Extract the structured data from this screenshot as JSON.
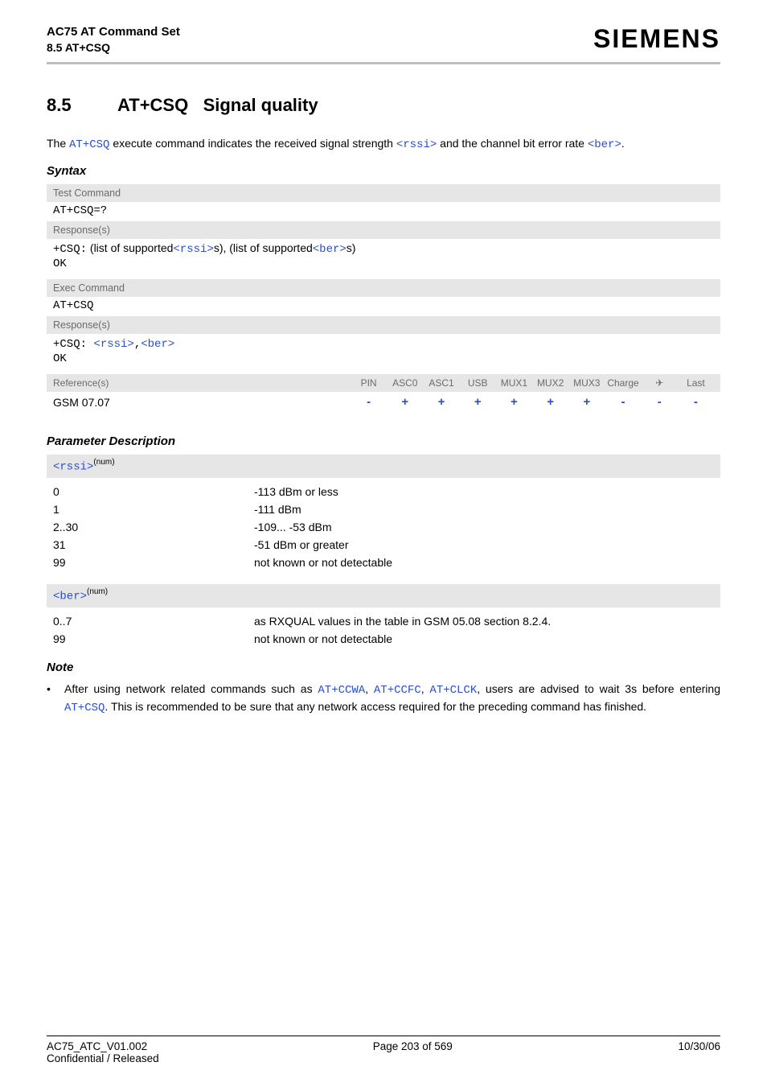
{
  "header": {
    "title": "AC75 AT Command Set",
    "subtitle": "8.5 AT+CSQ",
    "logo": "SIEMENS"
  },
  "section": {
    "number": "8.5",
    "title_cmd": "AT+CSQ",
    "title_rest": "Signal quality"
  },
  "intro": {
    "t1": "The ",
    "cmd": "AT+CSQ",
    "t2": " execute command indicates the received signal strength ",
    "p1": "<rssi>",
    "t3": " and the channel bit error rate ",
    "p2": "<ber>",
    "t4": "."
  },
  "syntax_label": "Syntax",
  "test_block": {
    "bar": "Test Command",
    "cmd": "AT+CSQ=?",
    "resp_bar": "Response(s)",
    "resp_prefix": "+CSQ:",
    "resp_t1": " (list of supported",
    "resp_p1": "<rssi>",
    "resp_t2": "s), (list of supported",
    "resp_p2": "<ber>",
    "resp_t3": "s)",
    "ok": "OK"
  },
  "exec_block": {
    "bar": "Exec Command",
    "cmd": "AT+CSQ",
    "resp_bar": "Response(s)",
    "resp_prefix": "+CSQ: ",
    "resp_p1": "<rssi>",
    "resp_comma": ",",
    "resp_p2": "<ber>",
    "ok": "OK"
  },
  "ref": {
    "label": "Reference(s)",
    "cols": [
      "PIN",
      "ASC0",
      "ASC1",
      "USB",
      "MUX1",
      "MUX2",
      "MUX3",
      "Charge",
      "✈",
      "Last"
    ],
    "value_label": "GSM 07.07",
    "values": [
      "-",
      "+",
      "+",
      "+",
      "+",
      "+",
      "+",
      "-",
      "-",
      "-"
    ]
  },
  "param_label": "Parameter Description",
  "params": [
    {
      "name": "<rssi>",
      "sup": "(num)",
      "rows": [
        {
          "k": "0",
          "v": "-113 dBm or less"
        },
        {
          "k": "1",
          "v": "-111 dBm"
        },
        {
          "k": "2..30",
          "v": "-109... -53 dBm"
        },
        {
          "k": "31",
          "v": "-51 dBm or greater"
        },
        {
          "k": "99",
          "v": "not known or not detectable"
        }
      ]
    },
    {
      "name": "<ber>",
      "sup": "(num)",
      "rows": [
        {
          "k": "0..7",
          "v": "as RXQUAL values in the table in GSM 05.08 section 8.2.4."
        },
        {
          "k": "99",
          "v": "not known or not detectable"
        }
      ]
    }
  ],
  "note_label": "Note",
  "note": {
    "pre": "After using network related commands such as ",
    "c1": "AT+CCWA",
    "s1": ", ",
    "c2": "AT+CCFC",
    "s2": ", ",
    "c3": "AT+CLCK",
    "mid": ", users are advised to wait 3s before entering ",
    "c4": "AT+CSQ",
    "post": ". This is recommended to be sure that any network access required for the preceding command has finished."
  },
  "footer": {
    "left1": "AC75_ATC_V01.002",
    "left2": "Confidential / Released",
    "center": "Page 203 of 569",
    "right": "10/30/06"
  }
}
